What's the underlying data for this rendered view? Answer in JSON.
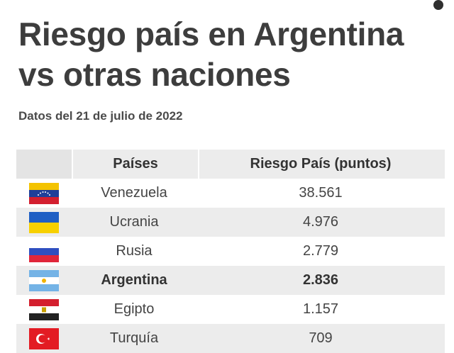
{
  "title": "Riesgo país en Argentina vs otras naciones",
  "subtitle": "Datos del 21 de julio de 2022",
  "chart_data": {
    "type": "table",
    "columns": [
      "",
      "Países",
      "Riesgo País (puntos)"
    ],
    "rows": [
      {
        "country": "Venezuela",
        "value": "38.561",
        "value_num": 38561,
        "flag": "venezuela-flag-icon",
        "bold": false
      },
      {
        "country": "Ucrania",
        "value": "4.976",
        "value_num": 4976,
        "flag": "ukraine-flag-icon",
        "bold": false
      },
      {
        "country": "Rusia",
        "value": "2.779",
        "value_num": 2779,
        "flag": "russia-flag-icon",
        "bold": false
      },
      {
        "country": "Argentina",
        "value": "2.836",
        "value_num": 2836,
        "flag": "argentina-flag-icon",
        "bold": true
      },
      {
        "country": "Egipto",
        "value": "1.157",
        "value_num": 1157,
        "flag": "egypt-flag-icon",
        "bold": false
      },
      {
        "country": "Turquía",
        "value": "709",
        "value_num": 709,
        "flag": "turkey-flag-icon",
        "bold": false
      }
    ]
  },
  "colors": {
    "header_bg": "#ececec",
    "title": "#3d3d3d",
    "shaded_row": "#ececec"
  }
}
